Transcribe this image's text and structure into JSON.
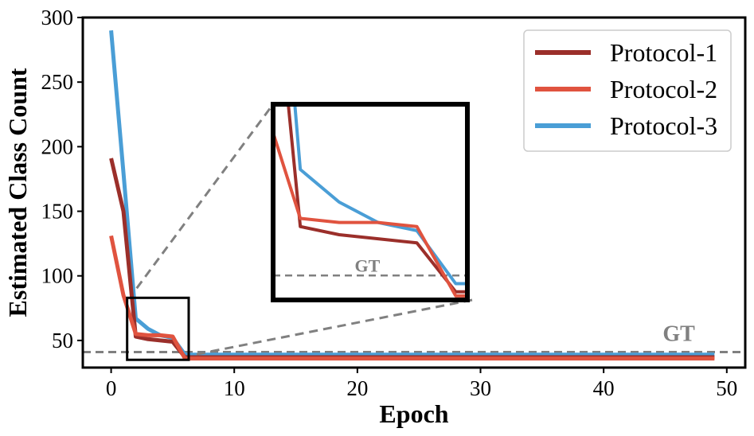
{
  "chart_data": {
    "type": "line",
    "title": "",
    "xlabel": "Epoch",
    "ylabel": "Estimated Class Count",
    "xlim": [
      -2.3,
      51.5
    ],
    "ylim": [
      29,
      300
    ],
    "xticks": [
      0,
      10,
      20,
      30,
      40,
      50
    ],
    "yticks": [
      50,
      100,
      150,
      200,
      250,
      300
    ],
    "grid": false,
    "legend_position": "top-right",
    "series": [
      {
        "name": "Protocol-1",
        "color": "#9b2f2a",
        "x": [
          0,
          1,
          2,
          3,
          4,
          5,
          6,
          7,
          8,
          9,
          10,
          15,
          20,
          25,
          30,
          35,
          40,
          45,
          49
        ],
        "values": [
          191,
          150,
          53,
          51,
          50,
          49,
          37,
          37,
          37,
          37,
          37,
          37,
          37,
          37,
          37,
          37,
          37,
          37,
          37
        ]
      },
      {
        "name": "Protocol-2",
        "color": "#e0533f",
        "x": [
          0,
          1,
          2,
          3,
          4,
          5,
          6,
          7,
          8,
          9,
          10,
          15,
          20,
          25,
          30,
          35,
          40,
          45,
          49
        ],
        "values": [
          131,
          85,
          55,
          54,
          54,
          53,
          36,
          36,
          36,
          36,
          36,
          36,
          36,
          36,
          36,
          36,
          36,
          36,
          36
        ]
      },
      {
        "name": "Protocol-3",
        "color": "#4a9ed6",
        "x": [
          0,
          1,
          2,
          3,
          4,
          5,
          6,
          7,
          8,
          9,
          10,
          15,
          20,
          25,
          30,
          35,
          40,
          45,
          49
        ],
        "values": [
          290,
          180,
          67,
          59,
          54,
          52,
          39,
          39,
          39,
          39,
          39,
          39,
          39,
          39,
          39,
          39,
          39,
          39,
          39
        ]
      }
    ],
    "reference_line": {
      "label": "GT",
      "value": 41,
      "color": "#808080"
    },
    "inset": {
      "zoom_x": [
        1.3,
        6.3
      ],
      "zoom_y": [
        35,
        83
      ],
      "gt_label": "GT"
    }
  }
}
